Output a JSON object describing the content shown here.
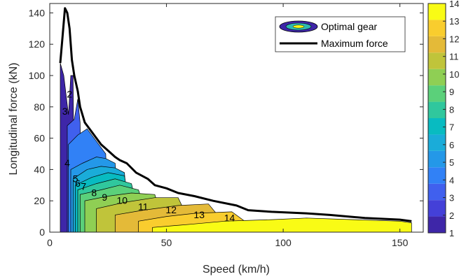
{
  "chart_data": {
    "type": "contour",
    "xlabel": "Speed (km/h)",
    "ylabel": "Longitudinal force (kN)",
    "xlim": [
      0,
      160
    ],
    "ylim": [
      0,
      146
    ],
    "x_ticks": [
      0,
      50,
      100,
      150
    ],
    "y_ticks": [
      0,
      20,
      40,
      60,
      80,
      100,
      120,
      140
    ],
    "grid": false,
    "legend": {
      "placement": "top-right",
      "entries": [
        "Optimal gear",
        "Maximum force"
      ]
    },
    "colorbar": {
      "min": 1,
      "max": 14,
      "ticks": [
        1,
        2,
        3,
        4,
        5,
        6,
        7,
        8,
        9,
        10,
        11,
        12,
        13,
        14
      ],
      "colors": [
        "#3e26a8",
        "#4440d8",
        "#4060ee",
        "#3181f6",
        "#2498e8",
        "#1aacd9",
        "#08bbc1",
        "#30c79d",
        "#5bd07a",
        "#8fcf54",
        "#c0c43a",
        "#e4ba38",
        "#f9cd2e",
        "#f9fb15"
      ]
    },
    "contour_labels": [
      {
        "text": "2",
        "x": 8.5,
        "y": 86
      },
      {
        "text": "3",
        "x": 6.5,
        "y": 75
      },
      {
        "text": "4",
        "x": 7.5,
        "y": 42
      },
      {
        "text": "5",
        "x": 11,
        "y": 32
      },
      {
        "text": "6",
        "x": 12,
        "y": 29
      },
      {
        "text": "7",
        "x": 14.5,
        "y": 27
      },
      {
        "text": "8",
        "x": 19,
        "y": 23
      },
      {
        "text": "9",
        "x": 23.5,
        "y": 20
      },
      {
        "text": "10",
        "x": 31,
        "y": 18
      },
      {
        "text": "11",
        "x": 40,
        "y": 14
      },
      {
        "text": "12",
        "x": 52,
        "y": 12
      },
      {
        "text": "13",
        "x": 64,
        "y": 9
      },
      {
        "text": "14",
        "x": 77,
        "y": 7
      }
    ],
    "series": [
      {
        "name": "Maximum force",
        "type": "line",
        "color": "#000000",
        "points": [
          [
            4.5,
            108
          ],
          [
            5.5,
            125
          ],
          [
            6.5,
            143
          ],
          [
            7.5,
            140
          ],
          [
            8.5,
            130
          ],
          [
            9.5,
            110
          ],
          [
            10.5,
            100
          ],
          [
            12,
            90
          ],
          [
            13,
            80
          ],
          [
            15,
            70
          ],
          [
            18,
            64
          ],
          [
            20,
            60
          ],
          [
            22,
            56
          ],
          [
            25,
            52
          ],
          [
            28,
            48
          ],
          [
            30,
            46
          ],
          [
            33,
            44
          ],
          [
            37,
            38
          ],
          [
            42,
            34
          ],
          [
            45,
            30
          ],
          [
            50,
            28
          ],
          [
            55,
            25
          ],
          [
            62,
            23
          ],
          [
            70,
            20
          ],
          [
            80,
            17
          ],
          [
            85,
            14
          ],
          [
            95,
            13
          ],
          [
            110,
            12
          ],
          [
            120,
            11
          ],
          [
            135,
            9
          ],
          [
            150,
            8
          ],
          [
            155,
            7
          ]
        ]
      }
    ],
    "filled_levels": [
      {
        "level": 1,
        "points": [
          [
            4.5,
            0
          ],
          [
            4.5,
            108
          ],
          [
            6,
            100
          ],
          [
            8,
            75
          ],
          [
            9,
            100
          ],
          [
            10,
            100
          ],
          [
            10.5,
            0
          ]
        ]
      },
      {
        "level": 3,
        "points": [
          [
            7.5,
            0
          ],
          [
            7.5,
            68
          ],
          [
            10.5,
            72
          ],
          [
            12,
            85
          ],
          [
            13,
            70
          ],
          [
            14,
            0
          ]
        ]
      },
      {
        "level": 4,
        "points": [
          [
            8,
            0
          ],
          [
            8,
            56
          ],
          [
            12,
            62
          ],
          [
            16,
            66
          ],
          [
            20,
            58
          ],
          [
            24,
            50
          ],
          [
            25,
            0
          ]
        ]
      },
      {
        "level": 5,
        "points": [
          [
            9,
            0
          ],
          [
            9,
            40
          ],
          [
            14,
            44
          ],
          [
            20,
            48
          ],
          [
            24,
            47
          ],
          [
            28,
            44
          ],
          [
            30,
            0
          ]
        ]
      },
      {
        "level": 6,
        "points": [
          [
            10,
            0
          ],
          [
            10,
            34
          ],
          [
            16,
            40
          ],
          [
            22,
            42
          ],
          [
            28,
            41
          ],
          [
            32,
            38
          ],
          [
            34,
            0
          ]
        ]
      },
      {
        "level": 7,
        "points": [
          [
            11,
            0
          ],
          [
            11,
            30
          ],
          [
            18,
            35
          ],
          [
            25,
            38
          ],
          [
            32,
            36
          ],
          [
            36,
            0
          ]
        ]
      },
      {
        "level": 8,
        "points": [
          [
            12,
            0
          ],
          [
            12,
            27
          ],
          [
            20,
            31
          ],
          [
            28,
            34
          ],
          [
            35,
            31
          ],
          [
            40,
            0
          ]
        ]
      },
      {
        "level": 9,
        "points": [
          [
            13,
            0
          ],
          [
            13,
            24
          ],
          [
            22,
            27
          ],
          [
            30,
            30
          ],
          [
            38,
            27
          ],
          [
            44,
            0
          ]
        ]
      },
      {
        "level": 10,
        "points": [
          [
            15,
            0
          ],
          [
            15,
            20
          ],
          [
            25,
            23
          ],
          [
            35,
            25
          ],
          [
            45,
            24
          ],
          [
            50,
            0
          ]
        ]
      },
      {
        "level": 11,
        "points": [
          [
            20,
            0
          ],
          [
            20,
            15
          ],
          [
            32,
            19
          ],
          [
            45,
            22
          ],
          [
            55,
            22
          ],
          [
            62,
            0
          ]
        ]
      },
      {
        "level": 12,
        "points": [
          [
            28,
            0
          ],
          [
            28,
            11
          ],
          [
            40,
            14
          ],
          [
            55,
            17
          ],
          [
            68,
            18
          ],
          [
            78,
            0
          ]
        ]
      },
      {
        "level": 13,
        "points": [
          [
            38,
            0
          ],
          [
            38,
            7
          ],
          [
            50,
            10
          ],
          [
            62,
            12
          ],
          [
            78,
            13
          ],
          [
            90,
            0
          ]
        ]
      },
      {
        "level": 14,
        "points": [
          [
            44,
            0
          ],
          [
            44,
            3
          ],
          [
            60,
            5
          ],
          [
            75,
            7
          ],
          [
            95,
            8
          ],
          [
            110,
            9
          ],
          [
            130,
            8
          ],
          [
            150,
            7
          ],
          [
            155,
            6
          ],
          [
            155,
            0
          ]
        ]
      }
    ]
  }
}
